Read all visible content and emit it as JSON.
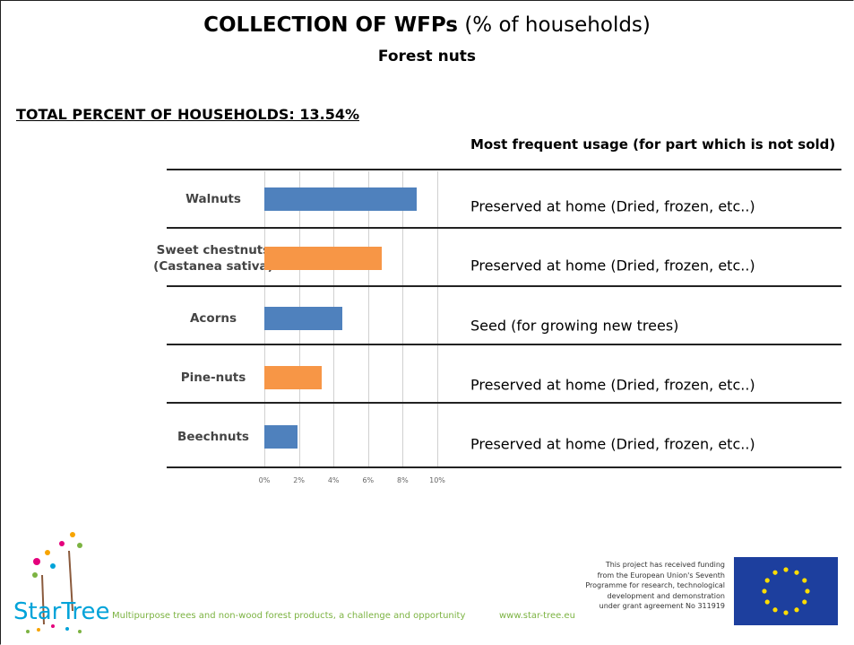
{
  "chart_data": {
    "type": "bar",
    "orientation": "horizontal",
    "title": "COLLECTION OF WFPs",
    "title_units": "(% of households)",
    "subtitle": "Forest nuts",
    "total_text": "TOTAL PERCENT OF HOUSEHOLDS: 13.54%",
    "usage_header": "Most frequent usage (for part which is not sold)",
    "categories": [
      "Walnuts",
      "Sweet chestnuts (Castanea sativa)",
      "Acorns",
      "Pine-nuts",
      "Beechnuts"
    ],
    "values": [
      8.8,
      6.8,
      4.5,
      3.3,
      1.9
    ],
    "colors": [
      "#4f81bd",
      "#f79646",
      "#4f81bd",
      "#f79646",
      "#4f81bd"
    ],
    "usage": [
      "Preserved at home (Dried, frozen, etc..)",
      "Preserved at home (Dried, frozen, etc..)",
      "Seed (for growing new trees)",
      "Preserved at home (Dried, frozen, etc..)",
      "Preserved at home (Dried, frozen, etc..)"
    ],
    "xlim": [
      0,
      10
    ],
    "xticks": [
      {
        "value": 0,
        "label": "0%"
      },
      {
        "value": 2,
        "label": "2%"
      },
      {
        "value": 4,
        "label": "4%"
      },
      {
        "value": 6,
        "label": "6%"
      },
      {
        "value": 8,
        "label": "8%"
      },
      {
        "value": 10,
        "label": "10%"
      }
    ],
    "grid": true
  },
  "footer": {
    "logo": "StarTree",
    "tagline": "Multipurpose trees and non-wood forest products, a challenge and opportunity",
    "url": "www.star-tree.eu",
    "funding": [
      "This project has received funding",
      "from the European Union's Seventh",
      "Programme for research, technological",
      "development and demonstration",
      "under grant agreement No 311919"
    ]
  }
}
